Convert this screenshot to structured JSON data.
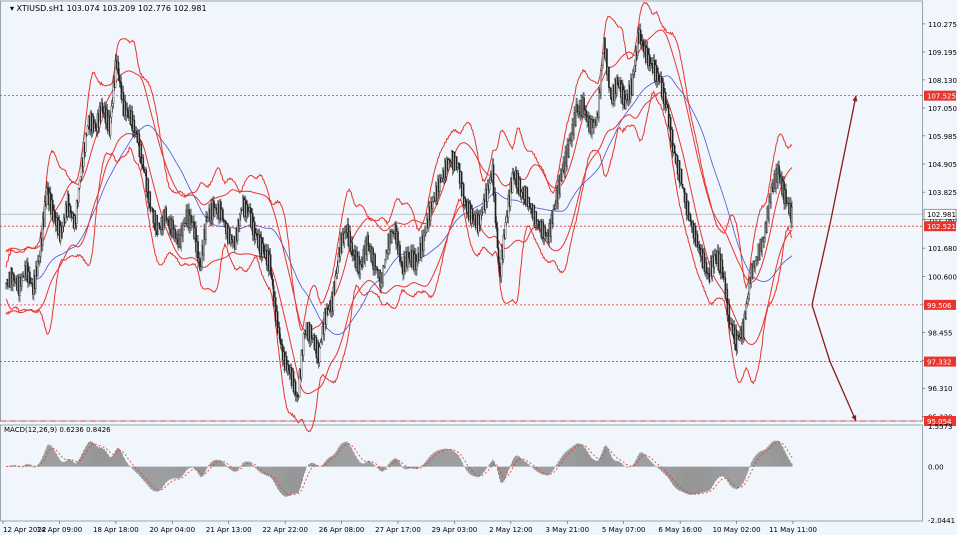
{
  "chart_data": [
    {
      "type": "candlestick",
      "title": "XTIUSD.sH1",
      "quote": {
        "open": 103.074,
        "high": 103.209,
        "low": 102.776,
        "close": 102.981
      },
      "ylim": [
        95.054,
        111.0
      ],
      "grid": false,
      "y_ticks": [
        "110.275",
        "109.195",
        "108.130",
        "107.050",
        "105.985",
        "104.905",
        "103.825",
        "102.760",
        "101.680",
        "100.600",
        "99.535",
        "98.455",
        "97.375",
        "96.310",
        "95.230"
      ],
      "x_labels": [
        "12 Apr 2022",
        "14 Apr 09:00",
        "18 Apr 18:00",
        "20 Apr 04:00",
        "21 Apr 13:00",
        "22 Apr 22:00",
        "26 Apr 08:00",
        "27 Apr 17:00",
        "29 Apr 03:00",
        "2 May 12:00",
        "3 May 21:00",
        "5 May 07:00",
        "6 May 16:00",
        "10 May 02:00",
        "11 May 11:00"
      ],
      "current_price": "102.981",
      "horizontal_levels": [
        {
          "label": "107.525",
          "value": 107.525,
          "color": "#e8352e"
        },
        {
          "label": "102.521",
          "value": 102.521,
          "color": "#e8352e"
        },
        {
          "label": "99.506",
          "value": 99.506,
          "color": "#e8352e"
        },
        {
          "label": "97.332",
          "value": 97.332,
          "color": "#e8352e"
        },
        {
          "label": "95.054",
          "value": 95.054,
          "color": "#e8352e"
        }
      ],
      "closes": [
        100.6,
        100.2,
        100.9,
        100.1,
        101.4,
        103.9,
        102.9,
        102.2,
        103.4,
        102.6,
        104.9,
        106.6,
        106.3,
        107.1,
        106.3,
        108.9,
        107.1,
        106.7,
        105.9,
        104.6,
        103.1,
        102.4,
        102.9,
        102.4,
        101.9,
        102.9,
        102.6,
        100.9,
        102.9,
        103.2,
        103.1,
        102.2,
        101.9,
        103.3,
        103.1,
        102.1,
        101.6,
        101.1,
        98.9,
        97.4,
        96.9,
        95.9,
        98.6,
        98.4,
        97.6,
        99.1,
        99.6,
        101.6,
        102.4,
        101.4,
        100.9,
        101.9,
        101.1,
        100.4,
        101.9,
        102.4,
        100.9,
        101.4,
        101.1,
        101.9,
        103.1,
        103.9,
        104.6,
        105.1,
        104.9,
        103.4,
        102.9,
        102.6,
        103.6,
        104.6,
        100.6,
        102.9,
        104.6,
        103.9,
        103.6,
        102.9,
        102.4,
        102.1,
        103.4,
        104.6,
        105.6,
        106.9,
        107.1,
        106.3,
        106.6,
        109.6,
        107.4,
        108.1,
        107.3,
        107.9,
        109.9,
        109.1,
        108.6,
        108.1,
        107.1,
        105.4,
        104.4,
        103.1,
        102.2,
        101.4,
        100.6,
        101.4,
        100.9,
        98.9,
        98.1,
        98.6,
        100.6,
        101.4,
        102.1,
        103.9,
        104.6,
        103.6,
        102.9
      ],
      "series": [
        {
          "name": "Bollinger Bands (outer)",
          "color": "#e8352e"
        },
        {
          "name": "Bollinger Bands (inner)",
          "color": "#e8352e"
        },
        {
          "name": "Moving Average",
          "color": "#4a56c8"
        }
      ],
      "forecast_path": [
        {
          "x": 0,
          "value": 99.506
        },
        {
          "x": 1,
          "value": 102.6
        },
        {
          "x": 2,
          "value": 107.525
        }
      ],
      "forecast_path_alt": [
        {
          "x": 0,
          "value": 99.506
        },
        {
          "x": 1,
          "value": 97.332
        },
        {
          "x": 2,
          "value": 95.054
        }
      ]
    },
    {
      "type": "bar",
      "title": "MACD(12,26,9) 0.6236 0.8426",
      "ylim": [
        -2.0441,
        1.5573
      ],
      "y_ticks": [
        "1.5573",
        "0.00",
        "-2.0441"
      ],
      "legend": "none"
    }
  ]
}
